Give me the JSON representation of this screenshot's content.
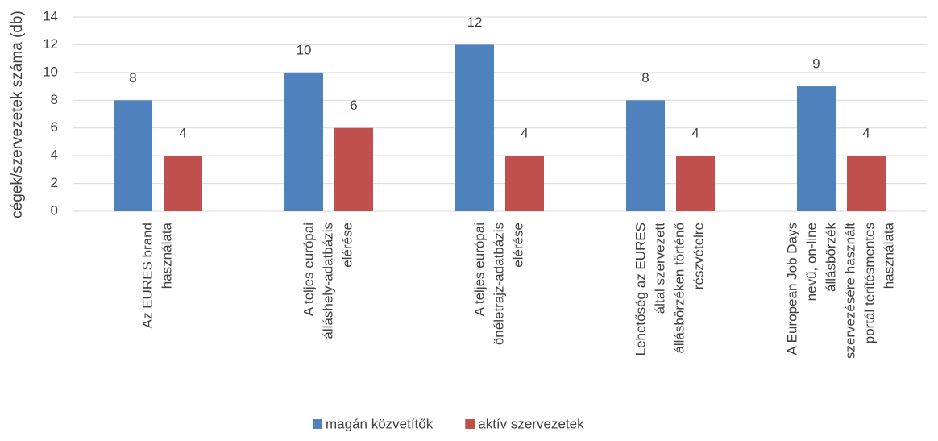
{
  "chart_data": {
    "type": "bar",
    "y_label": "cégek/szervezetek száma (db)",
    "categories": [
      [
        "Az EURES brand",
        "használata"
      ],
      [
        "A teljes európai",
        "álláshely-adatbázis",
        "elérése"
      ],
      [
        "A teljes európai",
        "önéletrajz-adatbázis",
        "elérése"
      ],
      [
        "Lehetőség az EURES",
        "által szervezett",
        "állásbörzéken történő",
        "részvételre"
      ],
      [
        "A European Job Days",
        "nevű, on-line",
        "állásbörzék",
        "szervezésére használt",
        "portál térítésmentes",
        "használata"
      ]
    ],
    "series": [
      {
        "name": "magán közvetítők",
        "color": "#4f81bd",
        "values": [
          8,
          10,
          12,
          8,
          9
        ]
      },
      {
        "name": "aktív szervezetek",
        "color": "#c0504d",
        "values": [
          4,
          6,
          4,
          4,
          4
        ]
      }
    ],
    "ylim": [
      0,
      14
    ],
    "yticks": [
      0,
      2,
      4,
      6,
      8,
      10,
      12,
      14
    ],
    "grid": true,
    "legend": "bottom"
  }
}
